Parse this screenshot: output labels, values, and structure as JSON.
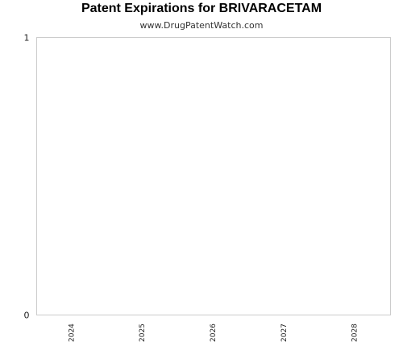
{
  "chart_data": {
    "type": "bar",
    "title": "Patent Expirations for BRIVARACETAM",
    "subtitle": "www.DrugPatentWatch.com",
    "categories": [
      "2024",
      "2025",
      "2026",
      "2027",
      "2028"
    ],
    "values": [
      0,
      0,
      0,
      0,
      0
    ],
    "ylim": [
      0,
      1
    ],
    "yticks": [
      "0",
      "1"
    ],
    "xlabel": "",
    "ylabel": "",
    "grid": false,
    "colors": {
      "axis": "#cccccc",
      "text": "#222222",
      "plot_bg": "#ffffff"
    }
  }
}
